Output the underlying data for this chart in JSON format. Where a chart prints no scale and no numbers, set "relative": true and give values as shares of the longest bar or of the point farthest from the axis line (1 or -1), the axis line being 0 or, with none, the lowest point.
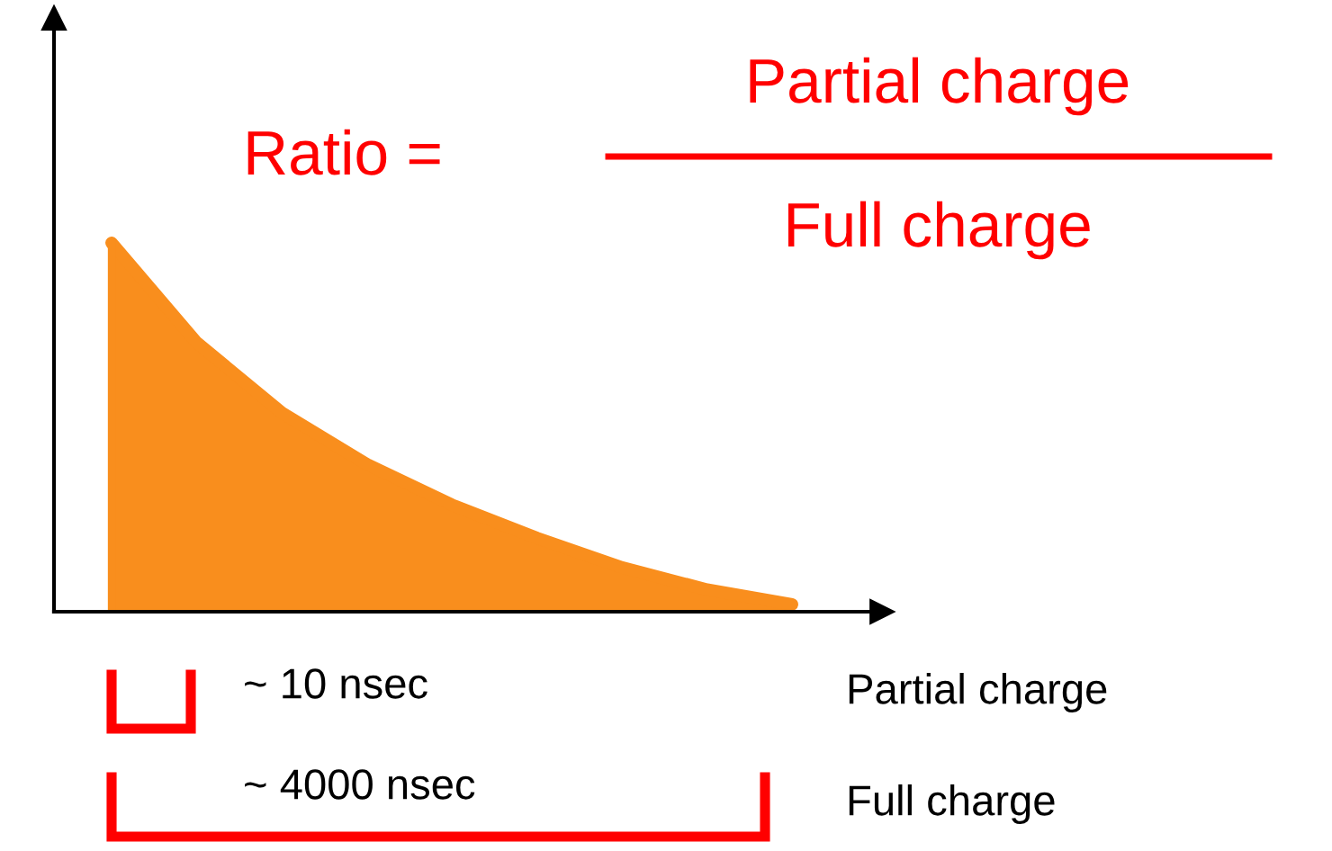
{
  "chart_data": {
    "type": "area",
    "relative": true,
    "categories": [
      null,
      null,
      null,
      null,
      null,
      null,
      null,
      null,
      null
    ],
    "series": [
      {
        "color": "#f98e1d",
        "values": [
          1,
          0.73,
          0.54,
          0.4,
          0.29,
          0.2,
          0.12,
          0.06,
          0.02
        ]
      }
    ],
    "annotations": [
      "Ratio =",
      "Partial charge",
      "Full charge",
      "~ 10 nsec",
      "~ 4000 nsec",
      "Partial charge",
      "Full charge"
    ],
    "grid": false,
    "legend": false
  }
}
